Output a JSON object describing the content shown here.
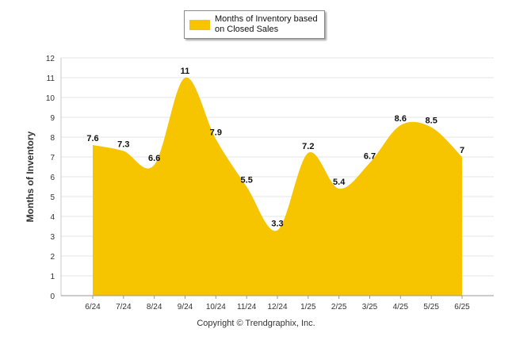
{
  "chart_data": {
    "type": "area",
    "categories": [
      "6/24",
      "7/24",
      "8/24",
      "9/24",
      "10/24",
      "11/24",
      "12/24",
      "1/25",
      "2/25",
      "3/25",
      "4/25",
      "5/25",
      "6/25"
    ],
    "series": [
      {
        "name": "Months of Inventory based on Closed Sales",
        "values": [
          7.6,
          7.3,
          6.6,
          11,
          7.9,
          5.5,
          3.3,
          7.2,
          5.4,
          6.7,
          8.6,
          8.5,
          7
        ],
        "data_labels": [
          "7.6",
          "7.3",
          "6.6",
          "11",
          "7.9",
          "5.5",
          "3.3",
          "7.2",
          "5.4",
          "6.7",
          "8.6",
          "8.5",
          "7"
        ]
      }
    ],
    "ylabel": "Months of Inventory",
    "ylim": [
      0,
      12
    ],
    "yticks": [
      0,
      1,
      2,
      3,
      4,
      5,
      6,
      7,
      8,
      9,
      10,
      11,
      12
    ],
    "grid": true,
    "legend": {
      "placement": "top-center"
    }
  },
  "legend": {
    "line1": "Months of Inventory based",
    "line2": "on Closed Sales"
  },
  "colors": {
    "fill": "#f7c500",
    "grid": "#e6e6e6",
    "axis": "#c8c8c8"
  },
  "footer": {
    "copyright": "Copyright © Trendgraphix, Inc."
  }
}
